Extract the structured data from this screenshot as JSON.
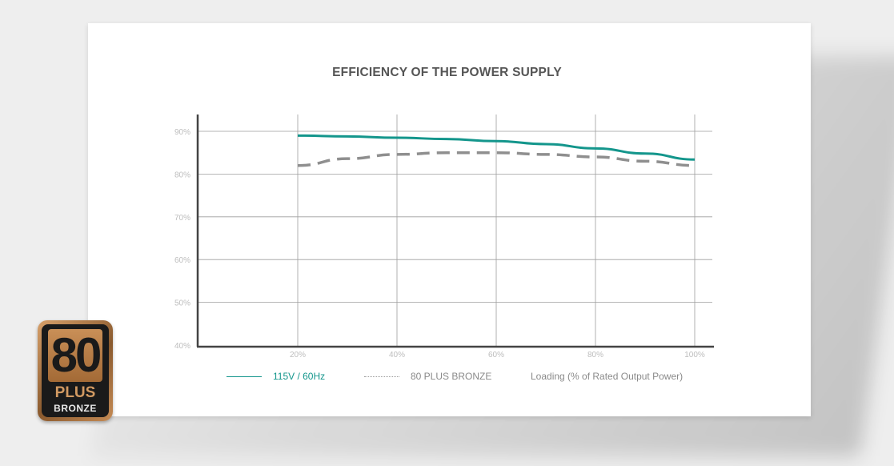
{
  "chart_data": {
    "type": "line",
    "title": "EFFICIENCY OF THE POWER SUPPLY",
    "xlabel": "Loading (% of Rated Output Power)",
    "ylabel": "",
    "x": [
      20,
      40,
      60,
      80,
      100
    ],
    "x_tick_labels": [
      "20%",
      "40%",
      "60%",
      "80%",
      "100%"
    ],
    "y_tick_labels": [
      "90%",
      "80%",
      "70%",
      "60%",
      "50%",
      "40%"
    ],
    "y_ticks": [
      90,
      80,
      70,
      60,
      50,
      40
    ],
    "xlim": [
      0,
      100
    ],
    "ylim": [
      40,
      94
    ],
    "grid": true,
    "legend_placement": "bottom",
    "series": [
      {
        "name": "115V / 60Hz",
        "style": "solid",
        "color": "#14968c",
        "x": [
          20,
          30,
          40,
          50,
          60,
          70,
          80,
          90,
          100
        ],
        "values": [
          89,
          88.8,
          88.5,
          88.2,
          87.7,
          87.0,
          86.0,
          84.8,
          83.4
        ]
      },
      {
        "name": "80 PLUS BRONZE",
        "style": "dashed",
        "color": "#8f8f8f",
        "x": [
          20,
          30,
          40,
          50,
          60,
          70,
          80,
          90,
          100
        ],
        "values": [
          82,
          83.6,
          84.6,
          85,
          85,
          84.6,
          84,
          83,
          82
        ]
      }
    ]
  },
  "badge": {
    "number": "80",
    "plus": "PLUS",
    "tier": "BRONZE"
  }
}
